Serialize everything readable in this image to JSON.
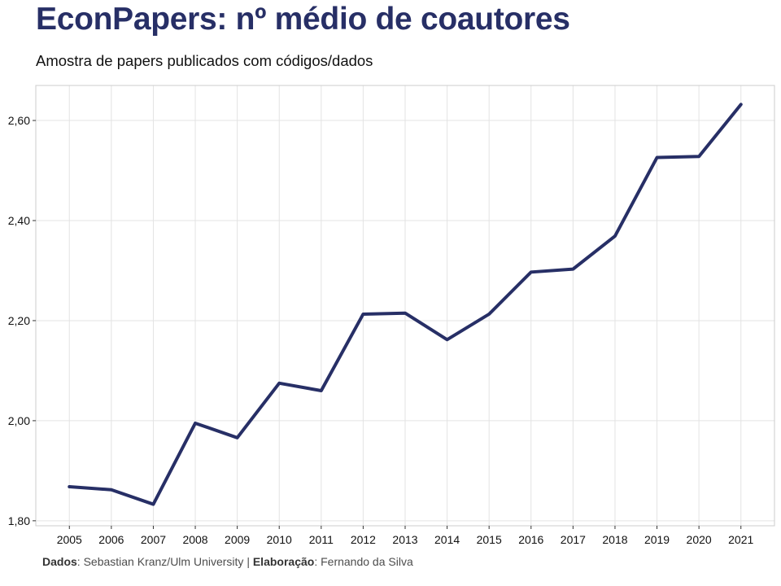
{
  "header": {
    "title": "EconPapers: nº médio de coautores",
    "subtitle": "Amostra de papers publicados com códigos/dados"
  },
  "caption": {
    "source_label": "Dados",
    "source_text": ": Sebastian Kranz/Ulm University | ",
    "author_label": "Elaboração",
    "author_text": ": Fernando da Silva"
  },
  "colors": {
    "line": "#272f66",
    "grid": "#e3e3e3",
    "panel_border": "#cccccc"
  },
  "chart_data": {
    "type": "line",
    "title": "EconPapers: nº médio de coautores",
    "subtitle": "Amostra de papers publicados com códigos/dados",
    "xlabel": "",
    "ylabel": "",
    "x": [
      2005,
      2006,
      2007,
      2008,
      2009,
      2010,
      2011,
      2012,
      2013,
      2014,
      2015,
      2016,
      2017,
      2018,
      2019,
      2020,
      2021
    ],
    "x_tick_labels": [
      "2005",
      "2006",
      "2007",
      "2008",
      "2009",
      "2010",
      "2011",
      "2012",
      "2013",
      "2014",
      "2015",
      "2016",
      "2017",
      "2018",
      "2019",
      "2020",
      "2021"
    ],
    "y_ticks": [
      1.8,
      2.0,
      2.2,
      2.4,
      2.6
    ],
    "y_tick_labels": [
      "1,80",
      "2,00",
      "2,20",
      "2,40",
      "2,60"
    ],
    "ylim": [
      1.79,
      2.67
    ],
    "xlim": [
      2004.2,
      2021.8
    ],
    "grid": true,
    "series": [
      {
        "values": [
          1.868,
          1.862,
          1.833,
          1.995,
          1.966,
          2.075,
          2.06,
          2.213,
          2.215,
          2.162,
          2.213,
          2.297,
          2.303,
          2.369,
          2.526,
          2.528,
          2.632
        ]
      }
    ]
  }
}
